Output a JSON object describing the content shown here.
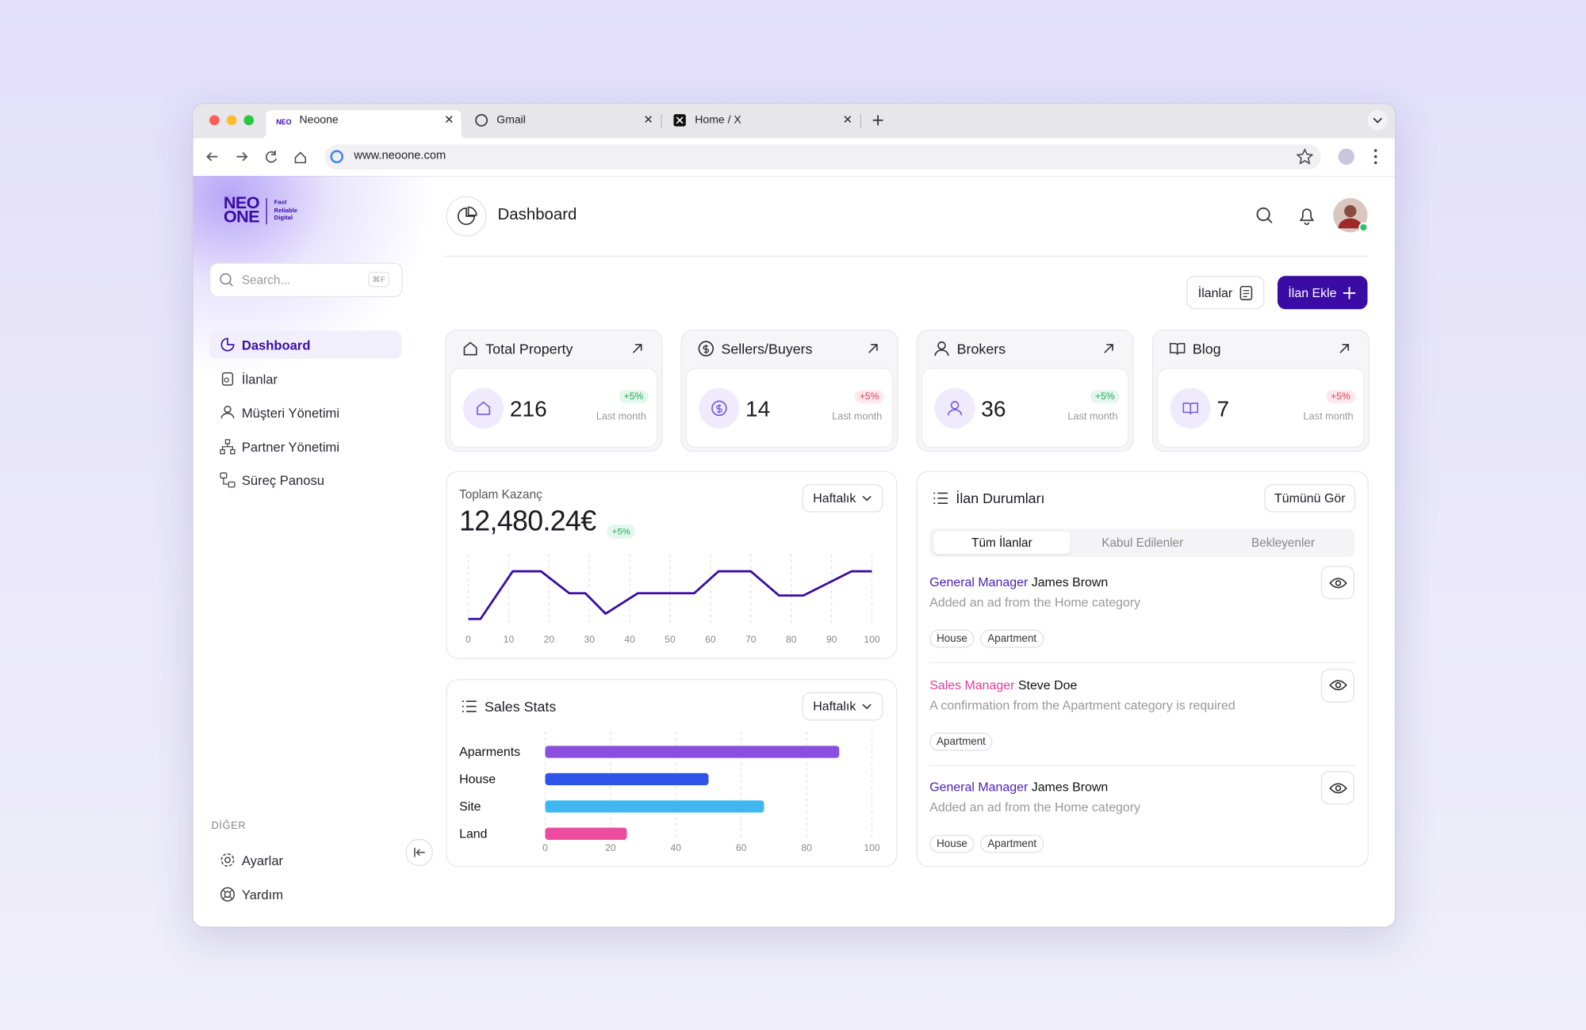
{
  "browser": {
    "tabs": [
      "Neoone",
      "Gmail",
      "Home / X"
    ],
    "url": "www.neoone.com"
  },
  "sidebar": {
    "logo": {
      "top": "NEO",
      "bottom": "ONE",
      "tagline": [
        "Fast",
        "Reliable",
        "Digital"
      ]
    },
    "search_placeholder": "Search...",
    "search_shortcut": "⌘F",
    "nav": [
      "Dashboard",
      "İlanlar",
      "Müşteri Yönetimi",
      "Partner Yönetimi",
      "Süreç Panosu"
    ],
    "active_nav": 0,
    "other_heading": "DİĞER",
    "other_nav": [
      "Ayarlar",
      "Yardım"
    ]
  },
  "header": {
    "title": "Dashboard"
  },
  "actions": {
    "listings": "İlanlar",
    "add": "İlan Ekle"
  },
  "stats": [
    {
      "title": "Total Property",
      "value": 216,
      "change": "+5%",
      "trend": "up",
      "period": "Last month"
    },
    {
      "title": "Sellers/Buyers",
      "value": 14,
      "change": "+5%",
      "trend": "down",
      "period": "Last month"
    },
    {
      "title": "Brokers",
      "value": 36,
      "change": "+5%",
      "trend": "up",
      "period": "Last month"
    },
    {
      "title": "Blog",
      "value": 7,
      "change": "+5%",
      "trend": "down",
      "period": "Last month"
    }
  ],
  "earnings": {
    "title": "Toplam Kazanç",
    "total": "12,480.24€",
    "change": "+5%",
    "period_select": "Haftalık",
    "chart": {
      "type": "line",
      "x": [
        0,
        3,
        11,
        18,
        25,
        29,
        34,
        42,
        56,
        62,
        70,
        77,
        83,
        95,
        100
      ],
      "values": [
        10,
        10,
        73,
        73,
        44,
        44,
        17,
        44,
        44,
        73,
        73,
        41,
        41,
        73,
        73
      ],
      "xlim": [
        0,
        100
      ],
      "ylim": [
        0,
        100
      ],
      "xticks": [
        0,
        10,
        20,
        30,
        40,
        50,
        60,
        70,
        80,
        90,
        100
      ],
      "color": "#3a0ca3",
      "grid": true
    }
  },
  "sales": {
    "title": "Sales Stats",
    "period_select": "Haftalık",
    "chart": {
      "type": "bar",
      "orientation": "horizontal",
      "categories": [
        "Aparments",
        "House",
        "Site",
        "Land"
      ],
      "values": [
        90,
        50,
        67,
        25
      ],
      "colors": [
        "#8b4fe0",
        "#2f55e8",
        "#3fb8f0",
        "#ee4aa0"
      ],
      "xlim": [
        0,
        100
      ],
      "xticks": [
        0,
        20,
        40,
        60,
        80,
        100
      ],
      "grid": true
    }
  },
  "listing_status": {
    "title": "İlan Durumları",
    "view_all": "Tümünü Gör",
    "tabs": [
      "Tüm İlanlar",
      "Kabul Edilenler",
      "Bekleyenler"
    ],
    "active_tab": 0,
    "items": [
      {
        "role": "General Manager",
        "role_color": "#4a1fb8",
        "name": "James Brown",
        "description": "Added an ad from the Home category",
        "tags": [
          "House",
          "Apartment"
        ]
      },
      {
        "role": "Sales Manager",
        "role_color": "#e0409a",
        "name": "Steve Doe",
        "description": "A confirmation from the Apartment category is required",
        "tags": [
          "Apartment"
        ]
      },
      {
        "role": "General Manager",
        "role_color": "#4a1fb8",
        "name": "James Brown",
        "description": "Added an ad from the Home category",
        "tags": [
          "House",
          "Apartment"
        ]
      }
    ]
  }
}
